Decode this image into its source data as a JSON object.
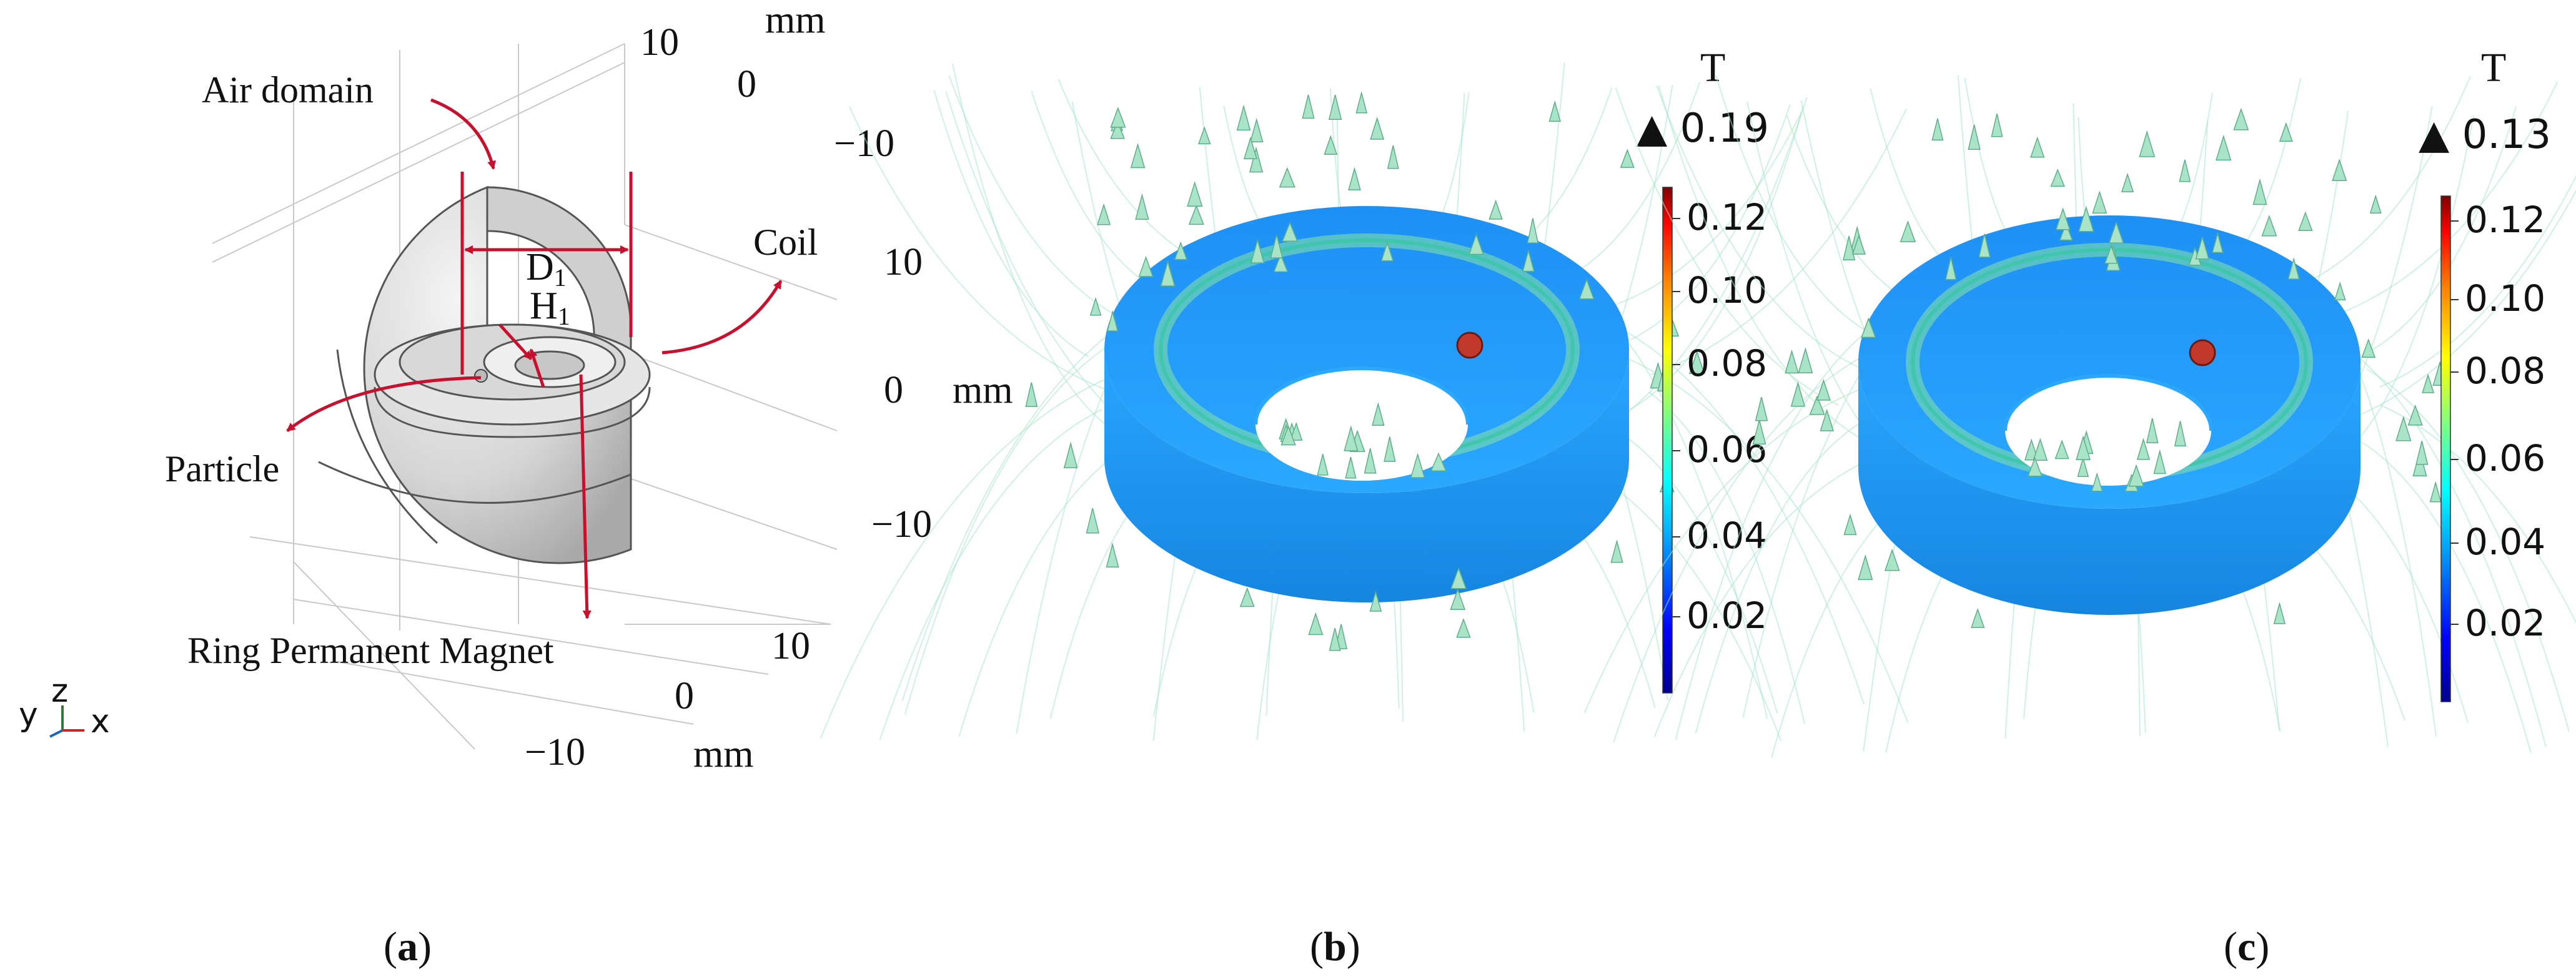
{
  "panel_a": {
    "labels": {
      "air_domain": "Air domain",
      "coil": "Coil",
      "particle": "Particle",
      "ring_magnet": "Ring Permanent Magnet",
      "d1_main": "D",
      "d1_sub": "1",
      "h1_main": "H",
      "h1_sub": "1"
    },
    "axes": {
      "top_ticks": [
        "10",
        "0",
        "−10"
      ],
      "top_unit": "mm",
      "right_ticks": [
        "10",
        "0",
        "−10"
      ],
      "right_unit": "mm",
      "bottom_ticks": [
        "10",
        "0",
        "−10"
      ],
      "bottom_unit": "mm"
    },
    "triad": {
      "y": "y",
      "z": "z",
      "x": "x"
    },
    "caption": {
      "open": "(",
      "letter": "a",
      "close": ")"
    }
  },
  "panel_b": {
    "unit": "T",
    "max_label": "▲ 0.19",
    "colorbar_ticks": [
      "0.12",
      "0.10",
      "0.08",
      "0.06",
      "0.04",
      "0.02"
    ],
    "caption": {
      "open": "(",
      "letter": "b",
      "close": ")"
    }
  },
  "panel_c": {
    "unit": "T",
    "max_label": "▲ 0.13",
    "colorbar_ticks": [
      "0.12",
      "0.10",
      "0.08",
      "0.06",
      "0.04",
      "0.02"
    ],
    "caption": {
      "open": "(",
      "letter": "c",
      "close": ")"
    }
  },
  "colors": {
    "annotation_red": "#c8102e",
    "colormap": [
      "#00008f",
      "#0000ff",
      "#00a0ff",
      "#00ffff",
      "#7fff7f",
      "#ffff00",
      "#ff8000",
      "#ff0000",
      "#800000"
    ],
    "ring_surface": "#1e8ff0",
    "field_lines": "#a8e6c4",
    "arrow_fill": "#a9e4c8",
    "solid_gray": "#dcdcdc"
  }
}
